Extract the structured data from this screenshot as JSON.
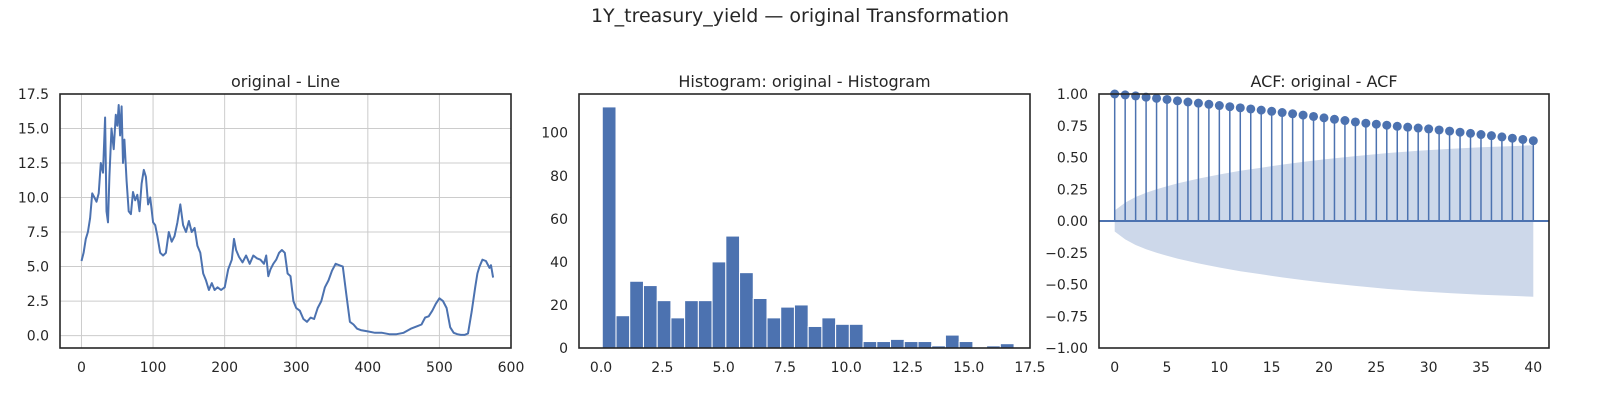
{
  "suptitle": "1Y_treasury_yield — original Transformation",
  "colors": {
    "series": "#4c72b0",
    "confband": "#cdd8ea",
    "grid": "#cccccc",
    "axes": "#262626"
  },
  "chart_data": [
    {
      "type": "line",
      "title": "original - Line",
      "grid": true,
      "xlim": [
        -30,
        600
      ],
      "ylim": [
        -0.9,
        17.5
      ],
      "xticks": [
        0,
        100,
        200,
        300,
        400,
        500,
        600
      ],
      "xtick_labels": [
        "0",
        "100",
        "200",
        "300",
        "400",
        "500",
        "600"
      ],
      "yticks": [
        0.0,
        2.5,
        5.0,
        7.5,
        10.0,
        12.5,
        15.0,
        17.5
      ],
      "ytick_labels": [
        "0.0",
        "2.5",
        "5.0",
        "7.5",
        "10.0",
        "12.5",
        "15.0",
        "17.5"
      ],
      "series": [
        {
          "x": [
            0,
            3,
            6,
            9,
            12,
            15,
            18,
            21,
            24,
            27,
            30,
            33,
            35,
            37,
            39,
            42,
            45,
            48,
            50,
            52,
            54,
            56,
            58,
            60,
            63,
            66,
            69,
            72,
            75,
            78,
            81,
            84,
            87,
            90,
            93,
            96,
            100,
            103,
            106,
            110,
            114,
            118,
            122,
            126,
            130,
            134,
            138,
            142,
            146,
            150,
            154,
            158,
            162,
            166,
            170,
            174,
            178,
            182,
            186,
            190,
            195,
            200,
            205,
            210,
            213,
            216,
            220,
            225,
            230,
            235,
            240,
            245,
            250,
            255,
            258,
            261,
            264,
            268,
            272,
            276,
            280,
            284,
            288,
            292,
            296,
            300,
            305,
            310,
            315,
            320,
            325,
            330,
            335,
            340,
            345,
            350,
            355,
            360,
            365,
            370,
            375,
            380,
            385,
            390,
            400,
            410,
            420,
            430,
            440,
            450,
            460,
            470,
            475,
            480,
            485,
            490,
            495,
            500,
            505,
            510,
            515,
            520,
            525,
            530,
            535,
            540,
            545,
            550,
            553,
            556,
            560,
            565,
            570,
            572,
            575
          ],
          "y": [
            5.4,
            6.0,
            7.0,
            7.5,
            8.5,
            10.3,
            10.0,
            9.7,
            10.3,
            12.5,
            11.8,
            15.8,
            9.0,
            8.2,
            11.5,
            15.0,
            13.5,
            16.0,
            15.2,
            16.7,
            14.5,
            16.6,
            12.5,
            14.2,
            11.2,
            9.0,
            8.8,
            10.4,
            9.8,
            10.2,
            9.0,
            11.0,
            12.0,
            11.5,
            9.5,
            10.0,
            8.2,
            8.0,
            7.2,
            6.0,
            5.8,
            6.0,
            7.5,
            6.8,
            7.2,
            8.2,
            9.5,
            8.0,
            7.5,
            8.3,
            7.5,
            7.8,
            6.5,
            6.0,
            4.5,
            4.0,
            3.3,
            3.8,
            3.3,
            3.5,
            3.3,
            3.5,
            4.8,
            5.5,
            7.0,
            6.2,
            5.7,
            5.3,
            5.8,
            5.2,
            5.8,
            5.6,
            5.5,
            5.2,
            5.8,
            4.3,
            4.8,
            5.2,
            5.5,
            6.0,
            6.2,
            6.0,
            4.5,
            4.3,
            2.5,
            2.0,
            1.8,
            1.2,
            1.0,
            1.3,
            1.2,
            2.0,
            2.5,
            3.5,
            4.0,
            4.7,
            5.2,
            5.1,
            5.0,
            3.0,
            1.0,
            0.8,
            0.5,
            0.4,
            0.3,
            0.2,
            0.2,
            0.1,
            0.1,
            0.2,
            0.5,
            0.7,
            0.8,
            1.3,
            1.4,
            1.8,
            2.3,
            2.7,
            2.5,
            2.0,
            0.6,
            0.2,
            0.1,
            0.05,
            0.05,
            0.15,
            1.7,
            3.5,
            4.5,
            5.0,
            5.5,
            5.4,
            4.9,
            5.1,
            4.2
          ]
        }
      ]
    },
    {
      "type": "bar",
      "title": "Histogram: original - Histogram",
      "grid": false,
      "xlim": [
        -0.9,
        17.5
      ],
      "ylim": [
        0,
        118
      ],
      "xticks": [
        0.0,
        2.5,
        5.0,
        7.5,
        10.0,
        12.5,
        15.0,
        17.5
      ],
      "xtick_labels": [
        "0.0",
        "2.5",
        "5.0",
        "7.5",
        "10.0",
        "12.5",
        "15.0",
        "17.5"
      ],
      "yticks": [
        0,
        20,
        40,
        60,
        80,
        100
      ],
      "ytick_labels": [
        "0",
        "20",
        "40",
        "60",
        "80",
        "100"
      ],
      "bin_start": 0.05,
      "bin_width": 0.56,
      "values": [
        112,
        15,
        31,
        29,
        22,
        14,
        22,
        22,
        40,
        52,
        35,
        23,
        14,
        19,
        20,
        10,
        14,
        11,
        11,
        3,
        3,
        4,
        3,
        3,
        1,
        6,
        3,
        0,
        1,
        2
      ]
    },
    {
      "type": "stem",
      "title": "ACF: original - ACF",
      "grid": false,
      "xlim": [
        -1.5,
        41.5
      ],
      "ylim": [
        -1.0,
        1.0
      ],
      "xticks": [
        0,
        5,
        10,
        15,
        20,
        25,
        30,
        35,
        40
      ],
      "xtick_labels": [
        "0",
        "5",
        "10",
        "15",
        "20",
        "25",
        "30",
        "35",
        "40"
      ],
      "yticks": [
        -1.0,
        -0.75,
        -0.5,
        -0.25,
        0.0,
        0.25,
        0.5,
        0.75,
        1.0
      ],
      "ytick_labels": [
        "−1.00",
        "−0.75",
        "−0.50",
        "−0.25",
        "0.00",
        "0.25",
        "0.50",
        "0.75",
        "1.00"
      ],
      "lags": [
        0,
        1,
        2,
        3,
        4,
        5,
        6,
        7,
        8,
        9,
        10,
        11,
        12,
        13,
        14,
        15,
        16,
        17,
        18,
        19,
        20,
        21,
        22,
        23,
        24,
        25,
        26,
        27,
        28,
        29,
        30,
        31,
        32,
        33,
        34,
        35,
        36,
        37,
        38,
        39,
        40
      ],
      "values": [
        1.0,
        0.993,
        0.985,
        0.975,
        0.966,
        0.957,
        0.946,
        0.937,
        0.928,
        0.919,
        0.909,
        0.9,
        0.891,
        0.882,
        0.873,
        0.864,
        0.854,
        0.844,
        0.834,
        0.823,
        0.812,
        0.801,
        0.791,
        0.78,
        0.77,
        0.762,
        0.754,
        0.746,
        0.739,
        0.732,
        0.725,
        0.717,
        0.708,
        0.699,
        0.69,
        0.681,
        0.672,
        0.662,
        0.652,
        0.642,
        0.632
      ],
      "conf_lags": [
        0,
        1,
        2,
        3,
        4,
        5,
        6,
        8,
        10,
        12,
        14,
        16,
        18,
        20,
        23,
        26,
        29,
        32,
        35,
        38,
        40
      ],
      "conf_upper": [
        0.083,
        0.145,
        0.189,
        0.222,
        0.25,
        0.274,
        0.296,
        0.334,
        0.366,
        0.395,
        0.42,
        0.444,
        0.465,
        0.485,
        0.511,
        0.535,
        0.553,
        0.568,
        0.58,
        0.59,
        0.596
      ]
    }
  ]
}
